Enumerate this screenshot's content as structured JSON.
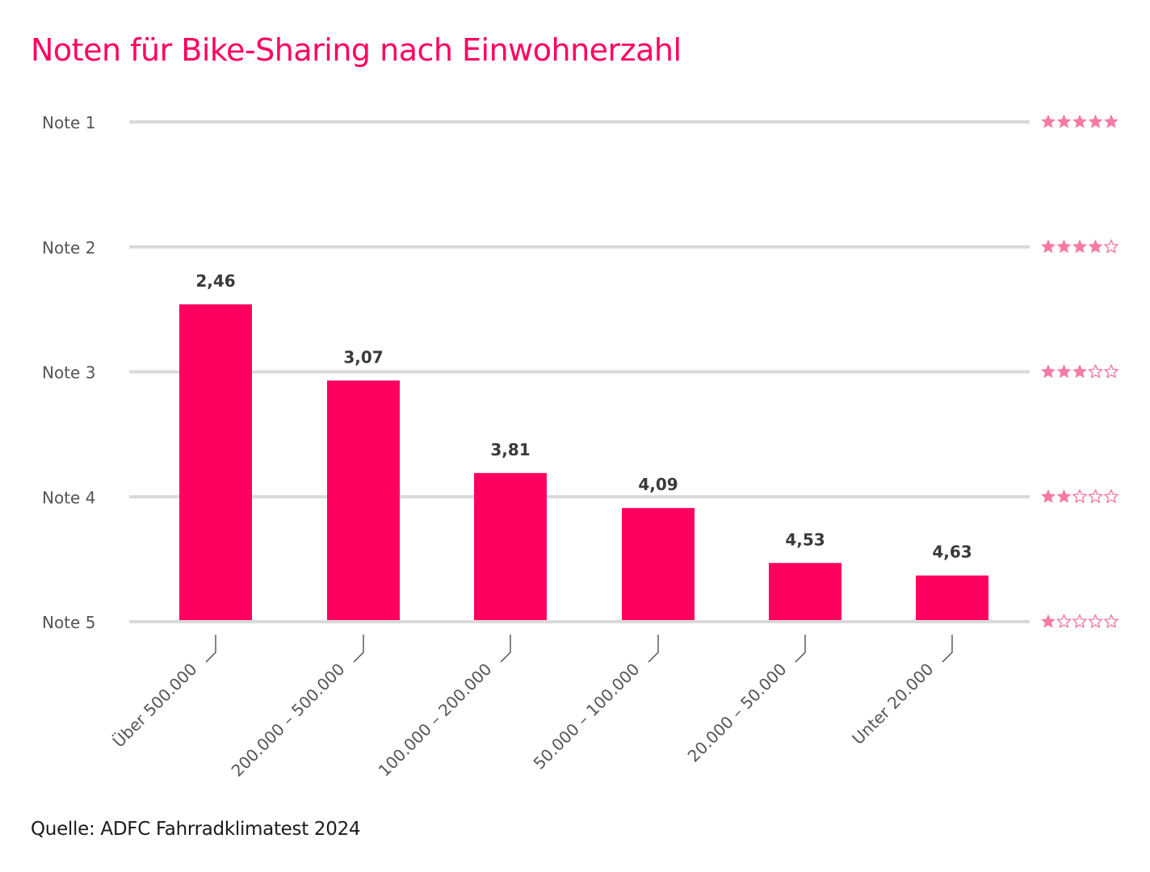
{
  "title": "Noten für Bike-Sharing nach Einwohnerzahl",
  "source": "Quelle: ADFC Fahrradklimatest 2024",
  "colors": {
    "title": "#ff0060",
    "bar": "#ff0060",
    "grid": "#d9d9d9",
    "star": "#f77aa6",
    "label": "#555555",
    "value_label": "#3a3a3a"
  },
  "chart_data": {
    "type": "bar",
    "title": "Noten für Bike-Sharing nach Einwohnerzahl",
    "xlabel": "",
    "ylabel": "",
    "categories": [
      "Über 500.000",
      "200.000 – 500.000",
      "100.000 – 200.000",
      "50.000 – 100.000",
      "20.000 – 50.000",
      "Unter 20.000"
    ],
    "values": [
      2.46,
      3.07,
      3.81,
      4.09,
      4.53,
      4.63
    ],
    "value_labels": [
      "2,46",
      "3,07",
      "3,81",
      "4,09",
      "4,53",
      "4,63"
    ],
    "ylim": [
      5,
      1
    ],
    "baseline": 5,
    "y_ticks": [
      {
        "value": 1,
        "label": "Note 1",
        "stars": 5
      },
      {
        "value": 2,
        "label": "Note 2",
        "stars": 4
      },
      {
        "value": 3,
        "label": "Note 3",
        "stars": 3
      },
      {
        "value": 4,
        "label": "Note 4",
        "stars": 2
      },
      {
        "value": 5,
        "label": "Note 5",
        "stars": 1
      }
    ],
    "star_scale_max": 5,
    "grid": true,
    "legend": "none",
    "source": "Quelle: ADFC Fahrradklimatest 2024"
  }
}
